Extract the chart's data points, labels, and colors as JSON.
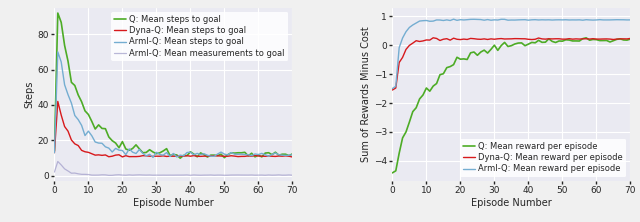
{
  "episodes": 70,
  "left_plot": {
    "xlabel": "Episode Number",
    "ylabel": "Steps",
    "xlim": [
      0,
      70
    ],
    "ylim": [
      -3,
      95
    ],
    "yticks": [
      0,
      20,
      40,
      60,
      80
    ],
    "xticks": [
      0,
      10,
      20,
      30,
      40,
      50,
      60,
      70
    ],
    "legend_loc": "upper right",
    "lines": [
      {
        "label": "Q: Mean steps to goal",
        "color": "#4dac26",
        "lw": 1.2
      },
      {
        "label": "Dyna-Q: Mean steps to goal",
        "color": "#d7191c",
        "lw": 1.0
      },
      {
        "label": "ArmI-Q: Mean steps to goal",
        "color": "#74add1",
        "lw": 1.0
      },
      {
        "label": "ArmI-Q: Mean measurements to goal",
        "color": "#9e9ac8",
        "lw": 0.9,
        "alpha": 0.7
      }
    ]
  },
  "right_plot": {
    "xlabel": "Episode Number",
    "ylabel": "Sum of Rewards Minus Cost",
    "xlim": [
      0,
      70
    ],
    "ylim": [
      -4.7,
      1.3
    ],
    "yticks": [
      1,
      0,
      -1,
      -2,
      -3,
      -4
    ],
    "xticks": [
      0,
      10,
      20,
      30,
      40,
      50,
      60,
      70
    ],
    "legend_loc": "lower right",
    "lines": [
      {
        "label": "Q: Mean reward per episode",
        "color": "#4dac26",
        "lw": 1.2
      },
      {
        "label": "Dyna-Q: Mean reward per episode",
        "color": "#d7191c",
        "lw": 1.0
      },
      {
        "label": "ArmI-Q: Mean reward per episode",
        "color": "#74add1",
        "lw": 1.0
      }
    ]
  },
  "bg_color": "#eaeaf2",
  "grid_color": "white",
  "font_size": 6.5,
  "fig_bg": "#f0f0f0"
}
